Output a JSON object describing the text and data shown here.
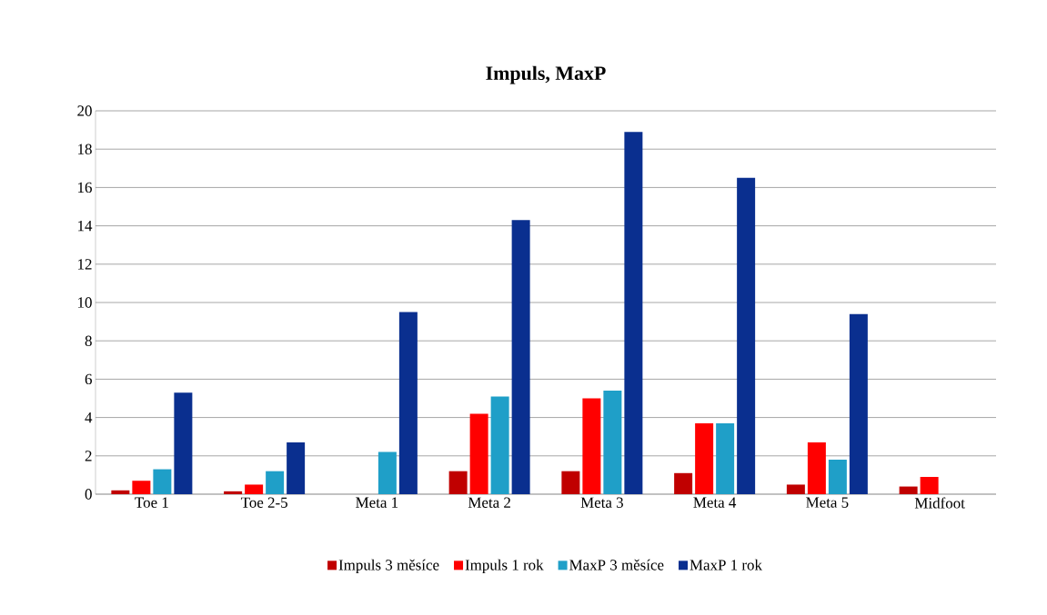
{
  "chart_data": {
    "type": "bar",
    "title": "Impuls, MaxP",
    "categories": [
      "Toe 1",
      "Toe 2-5",
      "Meta 1",
      "Meta 2",
      "Meta 3",
      "Meta 4",
      "Meta 5",
      "Midfoot"
    ],
    "series": [
      {
        "name": "Impuls 3 měsíce",
        "color": "#c00000",
        "values": [
          0.2,
          0.15,
          null,
          1.2,
          1.2,
          1.1,
          0.5,
          0.4
        ]
      },
      {
        "name": "Impuls 1 rok",
        "color": "#ff0000",
        "values": [
          0.7,
          0.5,
          null,
          4.2,
          5.0,
          3.7,
          2.7,
          0.9
        ]
      },
      {
        "name": "MaxP 3 měsíce",
        "color": "#1f9fc8",
        "values": [
          1.3,
          1.2,
          2.2,
          5.1,
          5.4,
          3.7,
          1.8,
          null
        ]
      },
      {
        "name": "MaxP 1 rok",
        "color": "#0a2f8f",
        "values": [
          5.3,
          2.7,
          9.5,
          14.3,
          18.9,
          16.5,
          9.4,
          null
        ]
      }
    ],
    "ylim": [
      0,
      20
    ],
    "yticks": [
      0,
      2,
      4,
      6,
      8,
      10,
      12,
      14,
      16,
      18,
      20
    ],
    "grid": "y",
    "legend": "bottom"
  }
}
